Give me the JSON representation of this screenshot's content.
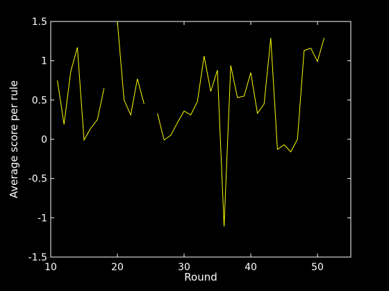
{
  "chart_data": {
    "type": "line",
    "title": "",
    "xlabel": "Round",
    "ylabel": "Average score per rule",
    "xlim": [
      10,
      55
    ],
    "ylim": [
      -1.5,
      1.5
    ],
    "xticks": [
      10,
      20,
      30,
      40,
      50
    ],
    "yticks": [
      -1.5,
      -1,
      -0.5,
      0,
      0.5,
      1,
      1.5
    ],
    "xtick_labels": [
      "10",
      "20",
      "30",
      "40",
      "50"
    ],
    "ytick_labels": [
      "-1.5",
      "-1",
      "-0.5",
      "0",
      "0.5",
      "1",
      "1.5"
    ],
    "grid": false,
    "legend": false,
    "colors": {
      "background": "#000000",
      "axes": "#ffffff",
      "line": "#ffff00"
    },
    "series": [
      {
        "x": [
          11,
          12,
          13,
          14,
          15,
          16,
          17,
          18,
          19,
          20,
          21,
          22,
          23,
          24,
          25,
          26,
          27,
          28,
          29,
          30,
          31,
          32,
          33,
          34,
          35,
          36,
          37,
          38,
          39,
          40,
          41,
          42,
          43,
          44,
          45,
          46,
          47,
          48,
          49,
          50,
          51
        ],
        "y": [
          0.75,
          0.19,
          0.86,
          1.17,
          -0.01,
          0.14,
          0.25,
          0.65,
          null,
          1.5,
          0.5,
          0.31,
          0.77,
          0.45,
          null,
          0.33,
          -0.01,
          0.05,
          0.21,
          0.36,
          0.31,
          0.48,
          1.06,
          0.61,
          0.88,
          -1.11,
          0.94,
          0.53,
          0.55,
          0.85,
          0.33,
          0.45,
          1.29,
          -0.13,
          -0.07,
          -0.16,
          0.0,
          1.13,
          1.16,
          0.99,
          1.29
        ]
      }
    ]
  }
}
